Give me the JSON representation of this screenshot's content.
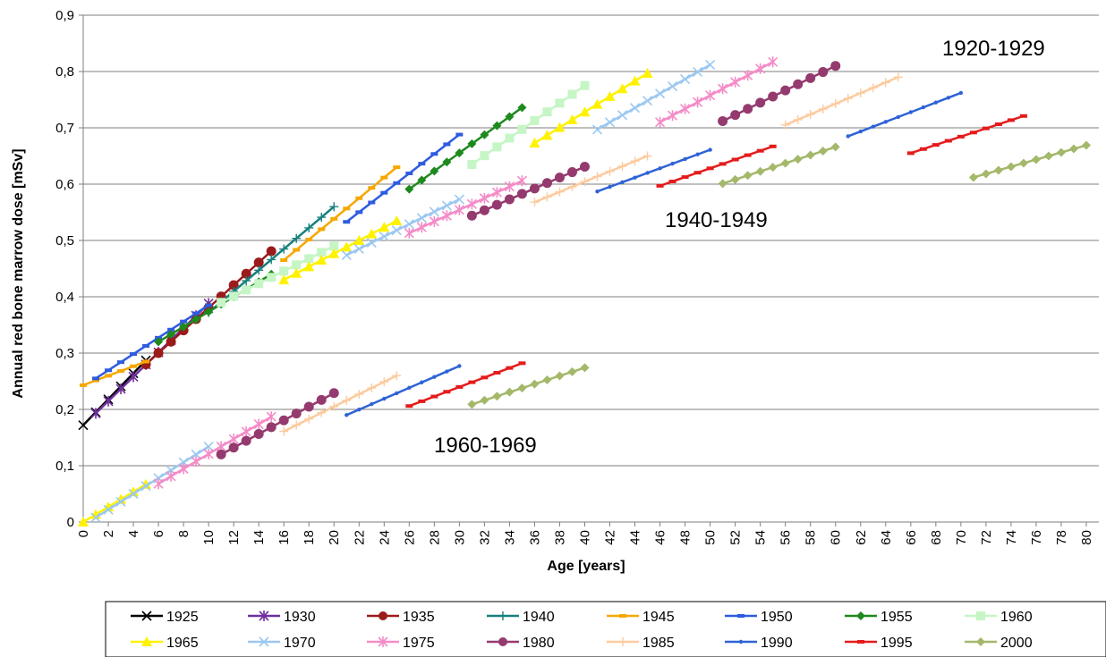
{
  "chart_data": {
    "type": "line",
    "title": "",
    "xlabel": "Age [years]",
    "ylabel": "Annual red bone marrow dose [mSv]",
    "xlim": [
      0,
      81
    ],
    "ylim": [
      0,
      0.9
    ],
    "xticks": [
      0,
      2,
      4,
      6,
      8,
      10,
      12,
      14,
      16,
      18,
      20,
      22,
      24,
      26,
      28,
      30,
      32,
      34,
      36,
      38,
      40,
      42,
      44,
      46,
      48,
      50,
      52,
      54,
      56,
      58,
      60,
      62,
      64,
      66,
      68,
      70,
      72,
      74,
      76,
      78,
      80
    ],
    "yticks": [
      "0",
      "0,1",
      "0,2",
      "0,3",
      "0,4",
      "0,5",
      "0,6",
      "0,7",
      "0,8",
      "0,9"
    ],
    "grid": "horizontal",
    "legend_position": "bottom",
    "annotations": [
      {
        "text": "1920-1929",
        "x": 65.5,
        "y": 0.825
      },
      {
        "text": "1940-1949",
        "x": 46.5,
        "y": 0.53
      },
      {
        "text": "1960-1969",
        "x": 28.3,
        "y": 0.125
      }
    ],
    "series": [
      {
        "name": "1925",
        "color": "#000000",
        "marker": "x",
        "segments": [
          {
            "x0": 0,
            "x1": 5,
            "y0": 0.172,
            "y1": 0.287
          }
        ]
      },
      {
        "name": "1930",
        "color": "#7030A0",
        "marker": "star",
        "segments": [
          {
            "x0": 1,
            "x1": 10,
            "y0": 0.193,
            "y1": 0.388
          }
        ]
      },
      {
        "name": "1935",
        "color": "#9B1B1B",
        "marker": "circle",
        "segments": [
          {
            "x0": 5,
            "x1": 15,
            "y0": 0.28,
            "y1": 0.481
          }
        ]
      },
      {
        "name": "1940",
        "color": "#17807E",
        "marker": "plus",
        "segments": [
          {
            "x0": 10,
            "x1": 20,
            "y0": 0.372,
            "y1": 0.56
          }
        ]
      },
      {
        "name": "1945",
        "color": "#F5A800",
        "marker": "dash",
        "segments": [
          {
            "x0": 0,
            "x1": 5,
            "y0": 0.243,
            "y1": 0.285
          },
          {
            "x0": 16,
            "x1": 25,
            "y0": 0.465,
            "y1": 0.63
          }
        ]
      },
      {
        "name": "1950",
        "color": "#2E5BE0",
        "marker": "dash",
        "segments": [
          {
            "x0": 1,
            "x1": 10,
            "y0": 0.255,
            "y1": 0.385
          },
          {
            "x0": 21,
            "x1": 30,
            "y0": 0.533,
            "y1": 0.688
          }
        ]
      },
      {
        "name": "1955",
        "color": "#1E8A1E",
        "marker": "diamond",
        "segments": [
          {
            "x0": 6,
            "x1": 15,
            "y0": 0.32,
            "y1": 0.44
          },
          {
            "x0": 26,
            "x1": 35,
            "y0": 0.591,
            "y1": 0.736
          }
        ]
      },
      {
        "name": "1960",
        "color": "#C6F5C6",
        "marker": "square",
        "segments": [
          {
            "x0": 11,
            "x1": 20,
            "y0": 0.39,
            "y1": 0.49
          },
          {
            "x0": 31,
            "x1": 40,
            "y0": 0.635,
            "y1": 0.775
          }
        ]
      },
      {
        "name": "1965",
        "color": "#FFF200",
        "marker": "triangle",
        "segments": [
          {
            "x0": 0,
            "x1": 5,
            "y0": 0.0,
            "y1": 0.067
          },
          {
            "x0": 16,
            "x1": 25,
            "y0": 0.43,
            "y1": 0.535
          },
          {
            "x0": 36,
            "x1": 45,
            "y0": 0.673,
            "y1": 0.797
          }
        ]
      },
      {
        "name": "1970",
        "color": "#9BC8F0",
        "marker": "x",
        "segments": [
          {
            "x0": 1,
            "x1": 10,
            "y0": 0.008,
            "y1": 0.134
          },
          {
            "x0": 21,
            "x1": 30,
            "y0": 0.474,
            "y1": 0.573
          },
          {
            "x0": 41,
            "x1": 50,
            "y0": 0.697,
            "y1": 0.812
          }
        ]
      },
      {
        "name": "1975",
        "color": "#F48CC8",
        "marker": "star",
        "segments": [
          {
            "x0": 6,
            "x1": 15,
            "y0": 0.068,
            "y1": 0.187
          },
          {
            "x0": 26,
            "x1": 35,
            "y0": 0.513,
            "y1": 0.606
          },
          {
            "x0": 46,
            "x1": 55,
            "y0": 0.71,
            "y1": 0.817
          }
        ]
      },
      {
        "name": "1980",
        "color": "#943A6E",
        "marker": "circle",
        "segments": [
          {
            "x0": 11,
            "x1": 20,
            "y0": 0.12,
            "y1": 0.229
          },
          {
            "x0": 31,
            "x1": 40,
            "y0": 0.544,
            "y1": 0.631
          },
          {
            "x0": 51,
            "x1": 60,
            "y0": 0.712,
            "y1": 0.81
          }
        ]
      },
      {
        "name": "1985",
        "color": "#FCCB9E",
        "marker": "plus",
        "segments": [
          {
            "x0": 16,
            "x1": 25,
            "y0": 0.161,
            "y1": 0.26
          },
          {
            "x0": 36,
            "x1": 45,
            "y0": 0.568,
            "y1": 0.65
          },
          {
            "x0": 56,
            "x1": 65,
            "y0": 0.705,
            "y1": 0.79
          }
        ]
      },
      {
        "name": "1990",
        "color": "#2E63D6",
        "marker": "dot",
        "segments": [
          {
            "x0": 21,
            "x1": 30,
            "y0": 0.19,
            "y1": 0.277
          },
          {
            "x0": 41,
            "x1": 50,
            "y0": 0.587,
            "y1": 0.661
          },
          {
            "x0": 61,
            "x1": 70,
            "y0": 0.685,
            "y1": 0.762
          }
        ]
      },
      {
        "name": "1995",
        "color": "#E51B1B",
        "marker": "dash",
        "segments": [
          {
            "x0": 26,
            "x1": 35,
            "y0": 0.206,
            "y1": 0.282
          },
          {
            "x0": 46,
            "x1": 55,
            "y0": 0.597,
            "y1": 0.667
          },
          {
            "x0": 66,
            "x1": 75,
            "y0": 0.655,
            "y1": 0.721
          }
        ]
      },
      {
        "name": "2000",
        "color": "#A4B86A",
        "marker": "diamond",
        "segments": [
          {
            "x0": 31,
            "x1": 40,
            "y0": 0.209,
            "y1": 0.274
          },
          {
            "x0": 51,
            "x1": 60,
            "y0": 0.601,
            "y1": 0.666
          },
          {
            "x0": 71,
            "x1": 80,
            "y0": 0.612,
            "y1": 0.669
          }
        ]
      }
    ]
  }
}
